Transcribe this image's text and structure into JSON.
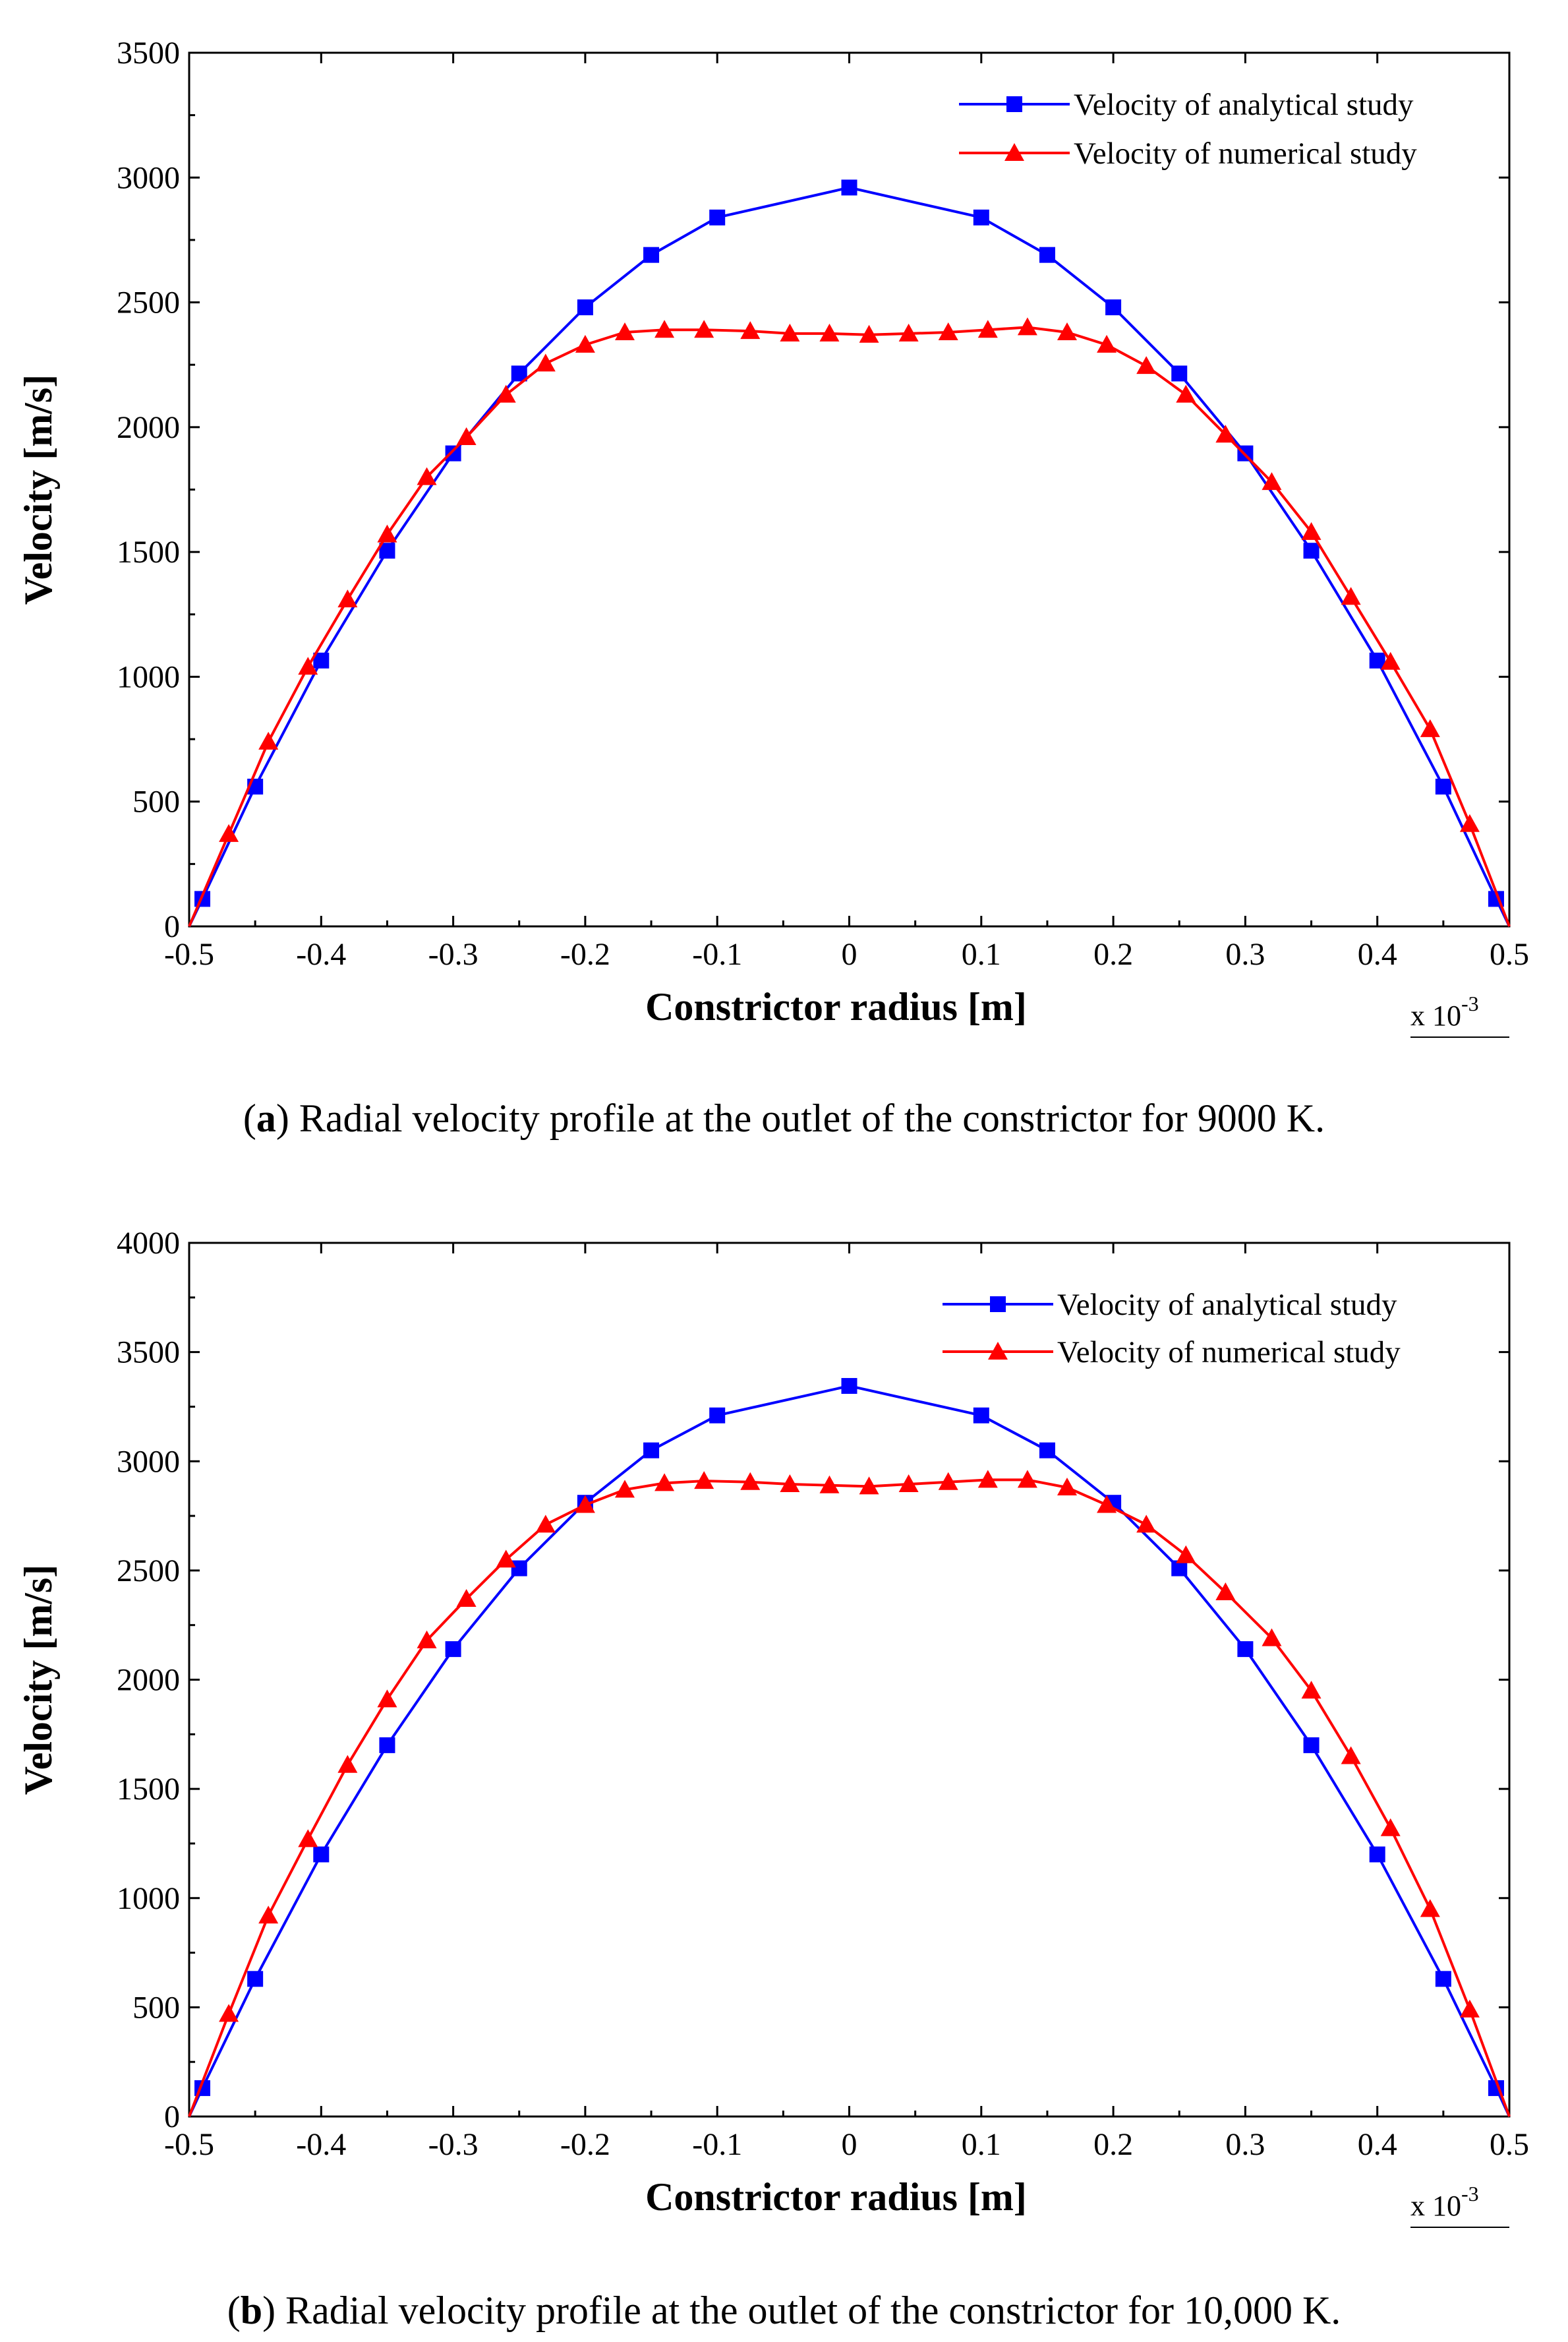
{
  "colors": {
    "analytical": "#0000ff",
    "numerical": "#ff0000"
  },
  "captions": [
    {
      "letter": "a",
      "text": ") Radial velocity profile at the outlet of the constrictor for 9000 K."
    },
    {
      "letter": "b",
      "text": ") Radial velocity profile at the outlet of the constrictor for 10,000 K."
    }
  ],
  "chart_data": [
    {
      "type": "line",
      "xlabel": "Constrictor radius [m]",
      "ylabel": "Velocity  [m/s]",
      "x_multiplier": "x 10",
      "x_multiplier_exp": "-3",
      "xlim": [
        -0.5,
        0.5
      ],
      "ylim": [
        0,
        3500
      ],
      "xticks": [
        "-0.5",
        "-0.4",
        "-0.3",
        "-0.2",
        "-0.1",
        "0",
        "0.1",
        "0.2",
        "0.3",
        "0.4",
        "0.5"
      ],
      "yticks": [
        "0",
        "500",
        "1000",
        "1500",
        "2000",
        "2500",
        "3000",
        "3500"
      ],
      "legend_position": "top-right",
      "series": [
        {
          "name": "Velocity of analytical study",
          "marker": "square",
          "x": [
            -0.5,
            -0.49,
            -0.45,
            -0.4,
            -0.35,
            -0.3,
            -0.25,
            -0.2,
            -0.15,
            -0.1,
            0,
            0.1,
            0.15,
            0.2,
            0.25,
            0.3,
            0.35,
            0.4,
            0.45,
            0.49,
            0.5
          ],
          "y": [
            0,
            110,
            560,
            1065,
            1505,
            1895,
            2215,
            2480,
            2690,
            2840,
            2960,
            2840,
            2690,
            2480,
            2215,
            1895,
            1505,
            1065,
            560,
            110,
            0
          ],
          "markers": [
            false,
            true,
            true,
            true,
            true,
            true,
            true,
            true,
            true,
            true,
            true,
            true,
            true,
            true,
            true,
            true,
            true,
            true,
            true,
            true,
            false
          ]
        },
        {
          "name": "Velocity of numerical study",
          "marker": "triangle",
          "x": [
            -0.5,
            -0.47,
            -0.44,
            -0.41,
            -0.38,
            -0.35,
            -0.32,
            -0.29,
            -0.26,
            -0.23,
            -0.2,
            -0.17,
            -0.14,
            -0.11,
            -0.075,
            -0.045,
            -0.015,
            0.015,
            0.045,
            0.075,
            0.105,
            0.135,
            0.165,
            0.195,
            0.225,
            0.255,
            0.285,
            0.32,
            0.35,
            0.38,
            0.41,
            0.44,
            0.47,
            0.5
          ],
          "y": [
            0,
            370,
            740,
            1040,
            1310,
            1570,
            1800,
            1960,
            2130,
            2255,
            2330,
            2380,
            2390,
            2390,
            2385,
            2375,
            2375,
            2370,
            2375,
            2380,
            2390,
            2400,
            2380,
            2330,
            2245,
            2130,
            1970,
            1780,
            1580,
            1320,
            1060,
            790,
            410,
            0
          ],
          "markers": [
            false,
            true,
            true,
            true,
            true,
            true,
            true,
            true,
            true,
            true,
            true,
            true,
            true,
            true,
            true,
            true,
            true,
            true,
            true,
            true,
            true,
            true,
            true,
            true,
            true,
            true,
            true,
            true,
            true,
            true,
            true,
            true,
            true,
            false
          ]
        }
      ]
    },
    {
      "type": "line",
      "xlabel": "Constrictor radius [m]",
      "ylabel": "Velocity  [m/s]",
      "x_multiplier": "x 10",
      "x_multiplier_exp": "-3",
      "xlim": [
        -0.5,
        0.5
      ],
      "ylim": [
        0,
        4000
      ],
      "xticks": [
        "-0.5",
        "-0.4",
        "-0.3",
        "-0.2",
        "-0.1",
        "0",
        "0.1",
        "0.2",
        "0.3",
        "0.4",
        "0.5"
      ],
      "yticks": [
        "0",
        "500",
        "1000",
        "1500",
        "2000",
        "2500",
        "3000",
        "3500",
        "4000"
      ],
      "legend_position": "top-right",
      "series": [
        {
          "name": "Velocity of analytical study",
          "marker": "square",
          "x": [
            -0.5,
            -0.49,
            -0.45,
            -0.4,
            -0.35,
            -0.3,
            -0.25,
            -0.2,
            -0.15,
            -0.1,
            0,
            0.1,
            0.15,
            0.2,
            0.25,
            0.3,
            0.35,
            0.4,
            0.45,
            0.49,
            0.5
          ],
          "y": [
            0,
            130,
            630,
            1200,
            1700,
            2140,
            2510,
            2810,
            3050,
            3210,
            3345,
            3210,
            3050,
            2810,
            2510,
            2140,
            1700,
            1200,
            630,
            130,
            0
          ],
          "markers": [
            false,
            true,
            true,
            true,
            true,
            true,
            true,
            true,
            true,
            true,
            true,
            true,
            true,
            true,
            true,
            true,
            true,
            true,
            true,
            true,
            false
          ]
        },
        {
          "name": "Velocity of numerical study",
          "marker": "triangle",
          "x": [
            -0.5,
            -0.47,
            -0.44,
            -0.41,
            -0.38,
            -0.35,
            -0.32,
            -0.29,
            -0.26,
            -0.23,
            -0.2,
            -0.17,
            -0.14,
            -0.11,
            -0.075,
            -0.045,
            -0.015,
            0.015,
            0.045,
            0.075,
            0.105,
            0.135,
            0.165,
            0.195,
            0.225,
            0.255,
            0.285,
            0.32,
            0.35,
            0.38,
            0.41,
            0.44,
            0.47,
            0.5
          ],
          "y": [
            0,
            470,
            920,
            1270,
            1610,
            1910,
            2180,
            2370,
            2550,
            2710,
            2800,
            2870,
            2900,
            2910,
            2905,
            2895,
            2890,
            2885,
            2895,
            2905,
            2915,
            2915,
            2880,
            2800,
            2710,
            2570,
            2400,
            2190,
            1950,
            1650,
            1320,
            950,
            490,
            0
          ],
          "markers": [
            false,
            true,
            true,
            true,
            true,
            true,
            true,
            true,
            true,
            true,
            true,
            true,
            true,
            true,
            true,
            true,
            true,
            true,
            true,
            true,
            true,
            true,
            true,
            true,
            true,
            true,
            true,
            true,
            true,
            true,
            true,
            true,
            true,
            false
          ]
        }
      ]
    }
  ]
}
